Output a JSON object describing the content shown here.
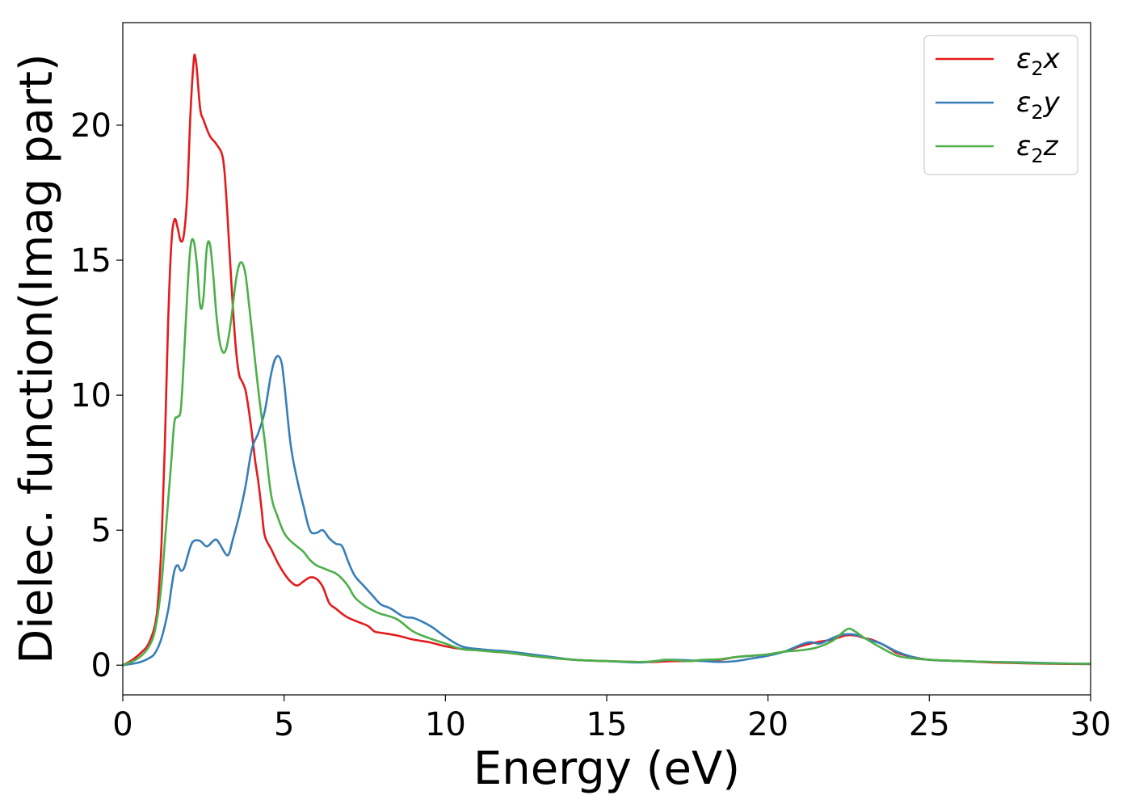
{
  "chart_data": {
    "type": "line",
    "xlabel": "Energy (eV)",
    "ylabel": "Dielec. function(Imag part)",
    "xlim": [
      0,
      30
    ],
    "ylim": [
      -1.1,
      23.8
    ],
    "xticks": [
      0,
      5,
      10,
      15,
      20,
      25,
      30
    ],
    "yticks": [
      0,
      5,
      10,
      15,
      20
    ],
    "grid": false,
    "legend_position": "top-right",
    "series": [
      {
        "name": "ε2x",
        "legend_base": "ε",
        "legend_sub": "2",
        "legend_var": "x",
        "color": "#e41a1c",
        "x": [
          0,
          0.3,
          0.6,
          0.8,
          1.0,
          1.1,
          1.2,
          1.3,
          1.4,
          1.5,
          1.6,
          1.7,
          1.8,
          1.9,
          2.0,
          2.1,
          2.2,
          2.25,
          2.3,
          2.4,
          2.5,
          2.7,
          2.9,
          3.1,
          3.2,
          3.3,
          3.4,
          3.5,
          3.6,
          3.7,
          3.8,
          3.9,
          4.0,
          4.1,
          4.2,
          4.3,
          4.4,
          4.6,
          4.8,
          5.0,
          5.2,
          5.4,
          5.6,
          5.8,
          6.0,
          6.2,
          6.4,
          6.6,
          6.8,
          7.0,
          7.3,
          7.6,
          7.8,
          8.0,
          8.5,
          9.0,
          9.5,
          10.0,
          10.5,
          11.0,
          11.5,
          12.0,
          13.0,
          14.0,
          15.0,
          16.0,
          16.5,
          17.0,
          17.5,
          18.0,
          18.5,
          19.0,
          19.5,
          20.0,
          20.5,
          21.0,
          21.5,
          22.0,
          22.4,
          22.7,
          23.0,
          23.2,
          23.5,
          23.8,
          24.0,
          24.5,
          25.0,
          26.0,
          27.0,
          28.0,
          29.0,
          30.0
        ],
        "values": [
          0,
          0.2,
          0.5,
          0.8,
          1.5,
          2.5,
          4.5,
          8.0,
          12.5,
          15.5,
          16.5,
          16.2,
          15.7,
          16.0,
          17.5,
          20.5,
          22.4,
          22.5,
          22.0,
          20.6,
          20.2,
          19.6,
          19.3,
          18.8,
          17.5,
          15.5,
          13.5,
          11.8,
          10.8,
          10.5,
          10.2,
          9.5,
          8.6,
          7.6,
          6.8,
          5.8,
          4.8,
          4.3,
          3.8,
          3.4,
          3.1,
          2.95,
          3.1,
          3.25,
          3.2,
          2.9,
          2.3,
          2.1,
          1.9,
          1.75,
          1.6,
          1.45,
          1.25,
          1.2,
          1.1,
          0.95,
          0.85,
          0.7,
          0.6,
          0.55,
          0.5,
          0.45,
          0.3,
          0.2,
          0.15,
          0.12,
          0.12,
          0.15,
          0.15,
          0.18,
          0.2,
          0.3,
          0.35,
          0.4,
          0.5,
          0.7,
          0.85,
          0.95,
          1.1,
          1.1,
          1.0,
          0.95,
          0.8,
          0.6,
          0.45,
          0.3,
          0.2,
          0.15,
          0.1,
          0.07,
          0.05,
          0.04
        ]
      },
      {
        "name": "ε2y",
        "legend_base": "ε",
        "legend_sub": "2",
        "legend_var": "y",
        "color": "#377eb8",
        "x": [
          0,
          0.5,
          0.8,
          1.0,
          1.2,
          1.4,
          1.5,
          1.6,
          1.7,
          1.8,
          1.9,
          2.0,
          2.1,
          2.2,
          2.4,
          2.6,
          2.8,
          2.9,
          3.0,
          3.2,
          3.3,
          3.4,
          3.6,
          3.8,
          4.0,
          4.2,
          4.4,
          4.6,
          4.75,
          4.9,
          5.0,
          5.2,
          5.4,
          5.6,
          5.8,
          6.0,
          6.2,
          6.4,
          6.6,
          6.8,
          7.0,
          7.2,
          7.5,
          7.8,
          8.0,
          8.3,
          8.7,
          9.0,
          9.3,
          9.6,
          10.0,
          10.5,
          11.0,
          11.5,
          12.0,
          13.0,
          14.0,
          15.0,
          16.0,
          16.5,
          17.0,
          17.5,
          18.0,
          18.5,
          19.0,
          19.5,
          20.0,
          20.5,
          21.0,
          21.3,
          21.6,
          21.9,
          22.2,
          22.5,
          22.8,
          23.1,
          23.5,
          24.0,
          24.5,
          25.0,
          26.0,
          27.0,
          28.0,
          29.0,
          30.0
        ],
        "values": [
          0,
          0.1,
          0.25,
          0.45,
          1.0,
          2.0,
          2.8,
          3.5,
          3.7,
          3.5,
          3.6,
          4.0,
          4.4,
          4.6,
          4.6,
          4.4,
          4.6,
          4.65,
          4.5,
          4.1,
          4.15,
          4.6,
          5.5,
          6.6,
          8.0,
          8.6,
          9.4,
          10.8,
          11.4,
          11.3,
          10.5,
          8.2,
          6.9,
          5.9,
          5.0,
          4.9,
          5.0,
          4.7,
          4.5,
          4.4,
          3.8,
          3.3,
          2.9,
          2.5,
          2.25,
          2.1,
          1.8,
          1.75,
          1.6,
          1.4,
          1.05,
          0.7,
          0.6,
          0.55,
          0.5,
          0.35,
          0.2,
          0.15,
          0.1,
          0.15,
          0.2,
          0.18,
          0.15,
          0.12,
          0.15,
          0.25,
          0.35,
          0.5,
          0.75,
          0.85,
          0.8,
          0.95,
          1.1,
          1.15,
          1.1,
          0.95,
          0.8,
          0.5,
          0.3,
          0.2,
          0.15,
          0.12,
          0.1,
          0.07,
          0.05
        ]
      },
      {
        "name": "ε2z",
        "legend_base": "ε",
        "legend_sub": "2",
        "legend_var": "z",
        "color": "#4daf4a",
        "x": [
          0,
          0.4,
          0.7,
          0.9,
          1.0,
          1.1,
          1.2,
          1.3,
          1.4,
          1.5,
          1.6,
          1.7,
          1.8,
          1.9,
          2.0,
          2.1,
          2.2,
          2.3,
          2.4,
          2.5,
          2.6,
          2.7,
          2.8,
          2.9,
          3.0,
          3.1,
          3.2,
          3.3,
          3.4,
          3.5,
          3.6,
          3.7,
          3.8,
          3.9,
          4.0,
          4.2,
          4.4,
          4.6,
          4.8,
          5.0,
          5.2,
          5.4,
          5.6,
          5.8,
          6.0,
          6.2,
          6.4,
          6.6,
          6.8,
          7.0,
          7.2,
          7.5,
          7.8,
          8.0,
          8.5,
          9.0,
          9.5,
          10.0,
          10.5,
          11.0,
          11.5,
          12.0,
          13.0,
          14.0,
          15.0,
          16.0,
          16.5,
          16.8,
          17.2,
          17.5,
          18.0,
          18.5,
          19.0,
          19.5,
          20.0,
          20.5,
          21.0,
          21.5,
          22.0,
          22.3,
          22.5,
          22.7,
          23.0,
          23.5,
          24.0,
          24.5,
          25.0,
          26.0,
          27.0,
          28.0,
          29.0,
          30.0
        ],
        "values": [
          0,
          0.2,
          0.5,
          0.9,
          1.3,
          2.0,
          3.0,
          4.5,
          6.0,
          7.5,
          9.0,
          9.2,
          9.5,
          11.5,
          13.8,
          15.5,
          15.7,
          14.8,
          13.3,
          13.6,
          15.4,
          15.6,
          14.5,
          13.0,
          12.0,
          11.6,
          11.7,
          12.3,
          13.2,
          14.2,
          14.8,
          14.9,
          14.5,
          13.5,
          12.4,
          10.2,
          8.3,
          6.3,
          5.5,
          4.9,
          4.6,
          4.4,
          4.2,
          3.9,
          3.7,
          3.6,
          3.5,
          3.4,
          3.2,
          2.9,
          2.5,
          2.2,
          2.0,
          1.9,
          1.7,
          1.25,
          1.0,
          0.8,
          0.6,
          0.55,
          0.5,
          0.45,
          0.3,
          0.2,
          0.15,
          0.12,
          0.15,
          0.2,
          0.18,
          0.15,
          0.2,
          0.22,
          0.3,
          0.35,
          0.4,
          0.5,
          0.55,
          0.65,
          0.9,
          1.2,
          1.35,
          1.25,
          1.0,
          0.65,
          0.35,
          0.25,
          0.2,
          0.15,
          0.12,
          0.08,
          0.06,
          0.05
        ]
      }
    ]
  }
}
